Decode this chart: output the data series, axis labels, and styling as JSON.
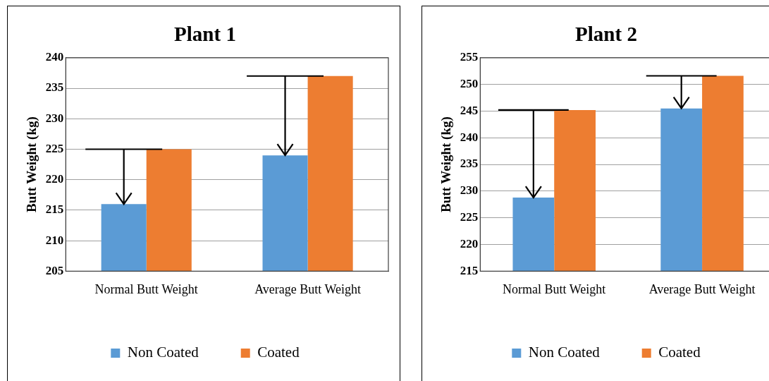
{
  "chart_data": [
    {
      "type": "bar",
      "title": "Plant 1",
      "ylabel": "Butt Weight (kg)",
      "categories": [
        "Normal Butt Weight",
        "Average Butt Weight"
      ],
      "series": [
        {
          "name": "Non Coated",
          "color": "#5b9bd5",
          "values": [
            216,
            224
          ]
        },
        {
          "name": "Coated",
          "color": "#ed7d31",
          "values": [
            225,
            237
          ]
        }
      ],
      "ylim": [
        205,
        240
      ],
      "yticks": [
        205,
        210,
        215,
        220,
        225,
        230,
        235,
        240
      ],
      "grid": "y",
      "legend": "bottom"
    },
    {
      "type": "bar",
      "title": "Plant 2",
      "ylabel": "Butt Weight (kg)",
      "categories": [
        "Normal Butt Weight",
        "Average Butt Weight"
      ],
      "series": [
        {
          "name": "Non Coated",
          "color": "#5b9bd5",
          "values": [
            228.8,
            245.5
          ]
        },
        {
          "name": "Coated",
          "color": "#ed7d31",
          "values": [
            245.2,
            251.6
          ]
        }
      ],
      "ylim": [
        215,
        255
      ],
      "yticks": [
        215,
        220,
        225,
        230,
        235,
        240,
        245,
        250,
        255
      ],
      "grid": "y",
      "legend": "bottom"
    }
  ]
}
